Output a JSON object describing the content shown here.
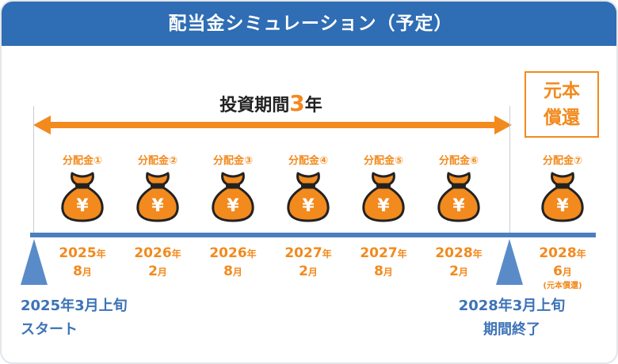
{
  "header": {
    "title": "配当金シミュレーション（予定）"
  },
  "period": {
    "label_pre": "投資期間",
    "years": "3",
    "label_post": "年"
  },
  "repayment_box": {
    "line1": "元本",
    "line2": "償還"
  },
  "payouts": [
    {
      "label": "分配金①",
      "year": "2025",
      "month": "8"
    },
    {
      "label": "分配金②",
      "year": "2026",
      "month": "2"
    },
    {
      "label": "分配金③",
      "year": "2026",
      "month": "8"
    },
    {
      "label": "分配金④",
      "year": "2027",
      "month": "2"
    },
    {
      "label": "分配金⑤",
      "year": "2027",
      "month": "8"
    },
    {
      "label": "分配金⑥",
      "year": "2028",
      "month": "2"
    },
    {
      "label": "分配金⑦",
      "year": "2028",
      "month": "6",
      "note": "(元本償還)"
    }
  ],
  "units": {
    "year": "年",
    "month": "月"
  },
  "bag_symbol": "¥",
  "start": {
    "line1": "2025年3月上旬",
    "line2": "スタート"
  },
  "end": {
    "line1": "2028年3月上旬",
    "line2": "期間終了"
  },
  "colors": {
    "header": "#2f6db4",
    "accent": "#f28a1e",
    "timeline": "#4b7fc0",
    "bag_outline": "#222222"
  }
}
